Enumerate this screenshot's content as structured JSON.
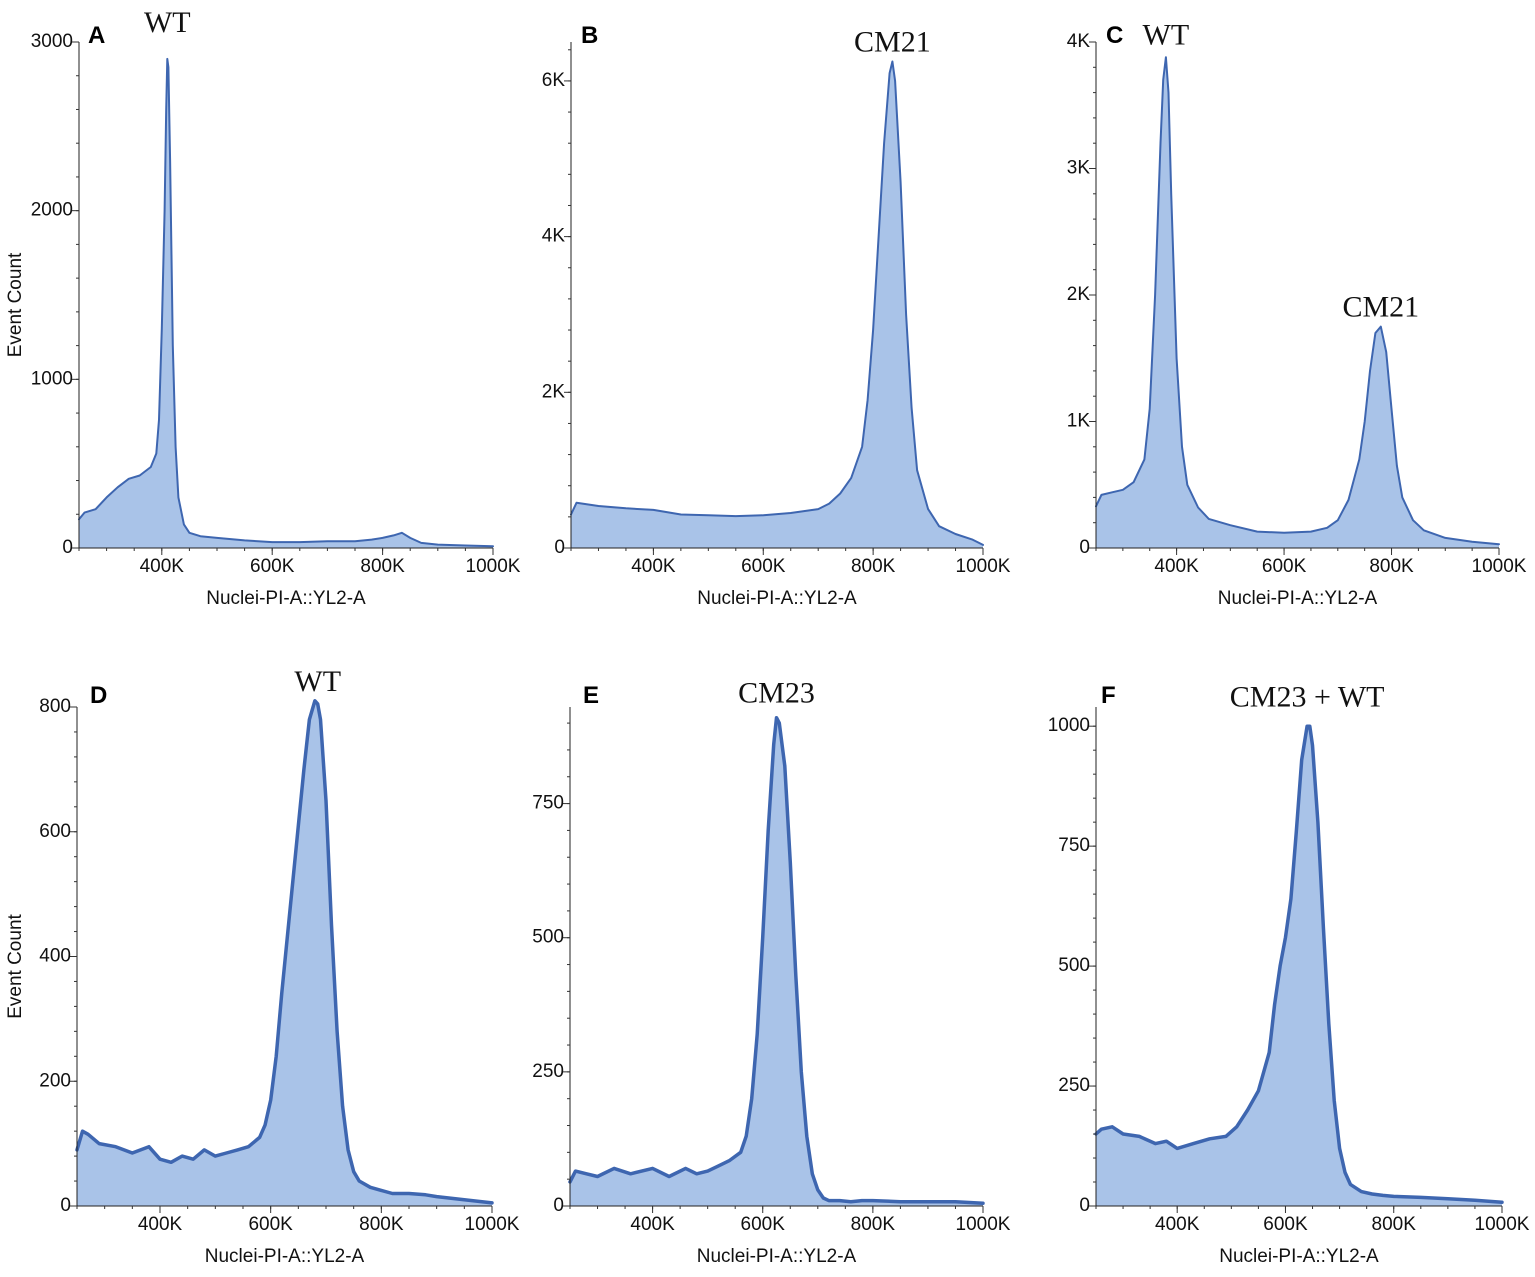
{
  "colors": {
    "fill": "#a9c3e8",
    "line": "#3e66b0",
    "axis": "#222222"
  },
  "chart_data": [
    {
      "id": "A",
      "type": "area",
      "panel_label": "A",
      "xlabel": "Nuclei-PI-A::YL2-A",
      "ylabel": "Event Count",
      "xlim": [
        250000,
        1000000
      ],
      "ylim": [
        0,
        3000
      ],
      "xticks": [
        400000,
        600000,
        800000,
        1000000
      ],
      "xtick_labels": [
        "400K",
        "600K",
        "800K",
        "1000K"
      ],
      "yticks": [
        0,
        1000,
        2000,
        3000
      ],
      "ytick_labels": [
        "0",
        "1000",
        "2000",
        "3000"
      ],
      "annotations": [
        {
          "text": "WT",
          "x": 410000,
          "y": 3000
        }
      ],
      "x": [
        250000,
        260000,
        280000,
        300000,
        320000,
        340000,
        360000,
        380000,
        390000,
        395000,
        400000,
        405000,
        408000,
        410000,
        412000,
        415000,
        420000,
        425000,
        430000,
        440000,
        450000,
        470000,
        500000,
        550000,
        600000,
        650000,
        700000,
        750000,
        780000,
        800000,
        820000,
        835000,
        850000,
        870000,
        900000,
        950000,
        1000000
      ],
      "y": [
        170,
        210,
        230,
        300,
        360,
        410,
        430,
        480,
        560,
        760,
        1300,
        2000,
        2600,
        2900,
        2850,
        2300,
        1200,
        600,
        300,
        140,
        90,
        70,
        60,
        45,
        35,
        35,
        40,
        40,
        50,
        60,
        75,
        90,
        60,
        30,
        20,
        15,
        10
      ]
    },
    {
      "id": "B",
      "type": "area",
      "panel_label": "B",
      "xlabel": "Nuclei-PI-A::YL2-A",
      "ylabel": "",
      "xlim": [
        250000,
        1000000
      ],
      "ylim": [
        0,
        6500
      ],
      "xticks": [
        400000,
        600000,
        800000,
        1000000
      ],
      "xtick_labels": [
        "400K",
        "600K",
        "800K",
        "1000K"
      ],
      "yticks": [
        0,
        2000,
        4000,
        6000
      ],
      "ytick_labels": [
        "0",
        "2K",
        "4K",
        "6K"
      ],
      "annotations": [
        {
          "text": "CM21",
          "x": 835000,
          "y": 6250
        }
      ],
      "x": [
        250000,
        260000,
        280000,
        300000,
        350000,
        400000,
        450000,
        500000,
        550000,
        600000,
        650000,
        700000,
        720000,
        740000,
        760000,
        780000,
        790000,
        800000,
        810000,
        820000,
        830000,
        835000,
        840000,
        850000,
        860000,
        870000,
        880000,
        900000,
        920000,
        950000,
        980000,
        1000000
      ],
      "y": [
        430,
        580,
        560,
        540,
        510,
        490,
        430,
        420,
        410,
        420,
        450,
        500,
        570,
        700,
        900,
        1300,
        1900,
        2800,
        4000,
        5200,
        6100,
        6250,
        6000,
        4700,
        3000,
        1800,
        1000,
        500,
        280,
        180,
        110,
        40
      ]
    },
    {
      "id": "C",
      "type": "area",
      "panel_label": "C",
      "xlabel": "Nuclei-PI-A::YL2-A",
      "ylabel": "",
      "xlim": [
        250000,
        1000000
      ],
      "ylim": [
        0,
        4000
      ],
      "xticks": [
        400000,
        600000,
        800000,
        1000000
      ],
      "xtick_labels": [
        "400K",
        "600K",
        "800K",
        "1000K"
      ],
      "yticks": [
        0,
        1000,
        2000,
        3000,
        4000
      ],
      "ytick_labels": [
        "0",
        "1K",
        "2K",
        "3K",
        "4K"
      ],
      "annotations": [
        {
          "text": "WT",
          "x": 380000,
          "y": 3900
        },
        {
          "text": "CM21",
          "x": 780000,
          "y": 1750
        }
      ],
      "x": [
        250000,
        260000,
        280000,
        300000,
        320000,
        340000,
        350000,
        360000,
        370000,
        375000,
        380000,
        385000,
        390000,
        400000,
        410000,
        420000,
        440000,
        460000,
        500000,
        550000,
        600000,
        650000,
        680000,
        700000,
        720000,
        740000,
        750000,
        760000,
        770000,
        780000,
        790000,
        800000,
        810000,
        820000,
        840000,
        860000,
        900000,
        950000,
        1000000
      ],
      "y": [
        330,
        420,
        440,
        460,
        520,
        700,
        1100,
        2000,
        3200,
        3700,
        3880,
        3600,
        2800,
        1500,
        800,
        500,
        320,
        230,
        180,
        130,
        120,
        130,
        160,
        220,
        380,
        700,
        1000,
        1400,
        1700,
        1750,
        1550,
        1100,
        650,
        400,
        220,
        140,
        80,
        50,
        30
      ]
    },
    {
      "id": "D",
      "type": "area",
      "panel_label": "D",
      "xlabel": "Nuclei-PI-A::YL2-A",
      "ylabel": "Event Count",
      "xlim": [
        250000,
        1000000
      ],
      "ylim": [
        0,
        800
      ],
      "xticks": [
        400000,
        600000,
        800000,
        1000000
      ],
      "xtick_labels": [
        "400K",
        "600K",
        "800K",
        "1000K"
      ],
      "yticks": [
        0,
        200,
        400,
        600,
        800
      ],
      "ytick_labels": [
        "0",
        "200",
        "400",
        "600",
        "800"
      ],
      "annotations": [
        {
          "text": "WT",
          "x": 685000,
          "y": 810
        }
      ],
      "x": [
        250000,
        260000,
        270000,
        290000,
        320000,
        350000,
        380000,
        400000,
        420000,
        440000,
        460000,
        480000,
        500000,
        520000,
        540000,
        560000,
        580000,
        590000,
        600000,
        610000,
        620000,
        640000,
        660000,
        670000,
        680000,
        685000,
        690000,
        700000,
        710000,
        720000,
        730000,
        740000,
        750000,
        760000,
        780000,
        800000,
        820000,
        850000,
        880000,
        900000,
        950000,
        1000000
      ],
      "y": [
        90,
        120,
        115,
        100,
        95,
        85,
        95,
        75,
        70,
        80,
        75,
        90,
        80,
        85,
        90,
        95,
        110,
        130,
        170,
        240,
        340,
        520,
        700,
        780,
        810,
        805,
        780,
        650,
        450,
        280,
        160,
        90,
        55,
        40,
        30,
        25,
        20,
        20,
        18,
        15,
        10,
        5
      ]
    },
    {
      "id": "E",
      "type": "area",
      "panel_label": "E",
      "xlabel": "Nuclei-PI-A::YL2-A",
      "ylabel": "",
      "xlim": [
        250000,
        1000000
      ],
      "ylim": [
        0,
        930
      ],
      "xticks": [
        400000,
        600000,
        800000,
        1000000
      ],
      "xtick_labels": [
        "400K",
        "600K",
        "800K",
        "1000K"
      ],
      "yticks": [
        0,
        250,
        500,
        750
      ],
      "ytick_labels": [
        "0",
        "250",
        "500",
        "750"
      ],
      "annotations": [
        {
          "text": "CM23",
          "x": 625000,
          "y": 920
        }
      ],
      "x": [
        250000,
        260000,
        280000,
        300000,
        330000,
        360000,
        400000,
        430000,
        460000,
        480000,
        500000,
        520000,
        540000,
        560000,
        570000,
        580000,
        590000,
        600000,
        610000,
        620000,
        625000,
        630000,
        640000,
        650000,
        660000,
        670000,
        680000,
        690000,
        700000,
        710000,
        720000,
        740000,
        760000,
        780000,
        800000,
        850000,
        900000,
        950000,
        1000000
      ],
      "y": [
        45,
        65,
        60,
        55,
        70,
        60,
        70,
        55,
        70,
        60,
        65,
        75,
        85,
        100,
        130,
        200,
        320,
        500,
        700,
        860,
        910,
        900,
        820,
        640,
        430,
        250,
        130,
        60,
        30,
        15,
        10,
        10,
        8,
        10,
        10,
        8,
        8,
        8,
        5
      ]
    },
    {
      "id": "F",
      "type": "area",
      "panel_label": "F",
      "xlabel": "Nuclei-PI-A::YL2-A",
      "ylabel": "",
      "xlim": [
        250000,
        1000000
      ],
      "ylim": [
        0,
        1040
      ],
      "xticks": [
        400000,
        600000,
        800000,
        1000000
      ],
      "xtick_labels": [
        "400K",
        "600K",
        "800K",
        "1000K"
      ],
      "yticks": [
        0,
        250,
        500,
        750,
        1000
      ],
      "ytick_labels": [
        "0",
        "250",
        "500",
        "750",
        "1000"
      ],
      "annotations": [
        {
          "text": "CM23 + WT",
          "x": 640000,
          "y": 1020
        }
      ],
      "x": [
        250000,
        260000,
        280000,
        300000,
        330000,
        360000,
        380000,
        400000,
        430000,
        460000,
        490000,
        510000,
        530000,
        550000,
        570000,
        580000,
        590000,
        600000,
        610000,
        620000,
        630000,
        640000,
        645000,
        650000,
        660000,
        670000,
        680000,
        690000,
        700000,
        710000,
        720000,
        740000,
        760000,
        780000,
        800000,
        850000,
        900000,
        950000,
        1000000
      ],
      "y": [
        150,
        160,
        165,
        150,
        145,
        130,
        135,
        120,
        130,
        140,
        145,
        165,
        200,
        240,
        320,
        420,
        500,
        560,
        640,
        780,
        930,
        1000,
        1000,
        960,
        800,
        580,
        380,
        220,
        120,
        70,
        45,
        30,
        25,
        22,
        20,
        18,
        15,
        12,
        8
      ]
    }
  ]
}
